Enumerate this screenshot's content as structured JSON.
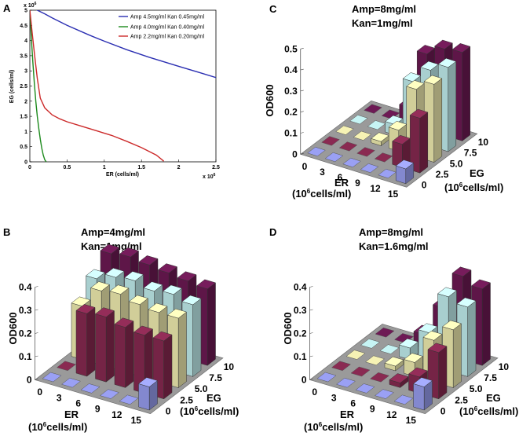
{
  "colors": {
    "blue": "#2b2fb2",
    "green": "#1d8a1d",
    "red": "#cc2a2a",
    "plum": "#6e1a55",
    "maroon": "#8a2a52",
    "cream": "#f6f2b4",
    "cyan": "#c6f4f4",
    "lavender": "#9aa0f4",
    "floor": "#9a9a9a"
  },
  "chart_data": [
    {
      "panel": "A",
      "type": "line",
      "xlabel": "ER (cells/ml)",
      "ylabel": "EG (cells/ml)",
      "x_scale_label": "x 10",
      "x_scale_exp": "6",
      "y_scale_label": "x 10",
      "y_scale_exp": "6",
      "xlim": [
        0,
        2.5
      ],
      "ylim": [
        0,
        5
      ],
      "xticks": [
        "0",
        "0.5",
        "1",
        "1.5",
        "2",
        "2.5"
      ],
      "yticks": [
        "0",
        "0.5",
        "1",
        "1.5",
        "2",
        "2.5",
        "3",
        "3.5",
        "4",
        "4.5",
        "5"
      ],
      "legend": "top-right",
      "series": [
        {
          "name": "Amp 4.5mg/ml Kan 0.45mg/ml",
          "color": "blue",
          "x": [
            0.0,
            0.02,
            0.05,
            0.1,
            0.2,
            0.3,
            0.5,
            0.8,
            1.0,
            1.3,
            1.6,
            2.0,
            2.3,
            2.5
          ],
          "y": [
            5.2,
            5.15,
            5.08,
            5.0,
            4.88,
            4.75,
            4.5,
            4.18,
            3.98,
            3.7,
            3.45,
            3.15,
            2.93,
            2.78
          ]
        },
        {
          "name": "Amp 4.0mg/ml Kan 0.40mg/ml",
          "color": "green",
          "x": [
            0.0,
            0.01,
            0.02,
            0.04,
            0.06,
            0.08,
            0.1,
            0.12,
            0.14,
            0.16,
            0.18,
            0.2,
            0.22
          ],
          "y": [
            5.0,
            4.6,
            4.1,
            3.3,
            2.6,
            2.0,
            1.5,
            1.1,
            0.75,
            0.45,
            0.22,
            0.07,
            0.0
          ]
        },
        {
          "name": "Amp 2.2mg/ml Kan 0.20mg/ml",
          "color": "red",
          "x": [
            0.0,
            0.03,
            0.06,
            0.1,
            0.14,
            0.2,
            0.3,
            0.4,
            0.5,
            0.7,
            0.9,
            1.1,
            1.3,
            1.5,
            1.7,
            1.8
          ],
          "y": [
            5.0,
            4.3,
            3.6,
            2.75,
            2.1,
            1.78,
            1.55,
            1.42,
            1.32,
            1.17,
            1.02,
            0.87,
            0.68,
            0.47,
            0.22,
            0.02
          ]
        }
      ]
    },
    {
      "panel": "B",
      "type": "bar3d",
      "title_line1": "Amp=4mg/ml",
      "title_line2": "Kan=1mg/ml",
      "zlabel": "OD600",
      "zlim": [
        0,
        0.4
      ],
      "zticks": [
        "0",
        "0.1",
        "0.2",
        "0.3",
        "0.4"
      ],
      "x_label": "ER",
      "x_unit_pre": "(10",
      "x_unit_exp": "6",
      "x_unit_post": "cells/ml)",
      "x_categories": [
        "0",
        "3",
        "6",
        "9",
        "12",
        "15"
      ],
      "y_label": "EG",
      "y_unit_pre": "(10",
      "y_unit_exp": "6",
      "y_unit_post": "cells/ml)",
      "y_categories": [
        "0",
        "2.5",
        "5.0",
        "7.5",
        "10"
      ],
      "values": [
        [
          0.0,
          0.0,
          0.23,
          0.3,
          0.36
        ],
        [
          0.0,
          0.27,
          0.32,
          0.33,
          0.37
        ],
        [
          0.0,
          0.28,
          0.33,
          0.34,
          0.36
        ],
        [
          0.0,
          0.26,
          0.31,
          0.32,
          0.35
        ],
        [
          0.0,
          0.25,
          0.3,
          0.33,
          0.34
        ],
        [
          0.1,
          0.25,
          0.3,
          0.31,
          0.33
        ]
      ]
    },
    {
      "panel": "C",
      "type": "bar3d",
      "title_line1": "Amp=8mg/ml",
      "title_line2": "Kan=1mg/ml",
      "zlabel": "OD600",
      "zlim": [
        0,
        0.5
      ],
      "zticks": [
        "0",
        "0.1",
        "0.2",
        "0.3",
        "0.4",
        "0.5"
      ],
      "x_label": "ER",
      "x_unit_pre": "(10",
      "x_unit_exp": "6",
      "x_unit_post": "cells/ml)",
      "x_categories": [
        "0",
        "3",
        "6",
        "9",
        "12",
        "15"
      ],
      "y_label": "EG",
      "y_unit_pre": "(10",
      "y_unit_exp": "6",
      "y_unit_post": "cells/ml)",
      "y_categories": [
        "0",
        "2.5",
        "5.0",
        "7.5",
        "10"
      ],
      "values": [
        [
          0.0,
          0.0,
          0.0,
          0.0,
          0.0
        ],
        [
          0.0,
          0.0,
          0.0,
          0.0,
          0.0
        ],
        [
          0.0,
          0.0,
          0.02,
          0.05,
          0.08
        ],
        [
          0.0,
          0.0,
          0.1,
          0.28,
          0.36
        ],
        [
          0.0,
          0.11,
          0.32,
          0.36,
          0.41
        ],
        [
          0.07,
          0.26,
          0.37,
          0.4,
          0.42
        ]
      ]
    },
    {
      "panel": "D",
      "type": "bar3d",
      "title_line1": "Amp=8mg/ml",
      "title_line2": "Kan=1.6mg/ml",
      "zlabel": "OD600",
      "zlim": [
        0,
        0.4
      ],
      "zticks": [
        "0",
        "0.1",
        "0.2",
        "0.3",
        "0.4"
      ],
      "x_label": "ER",
      "x_unit_pre": "(10",
      "x_unit_exp": "6",
      "x_unit_post": "cells/ml)",
      "x_categories": [
        "0",
        "3",
        "6",
        "9",
        "12",
        "15"
      ],
      "y_label": "EG",
      "y_unit_pre": "(10",
      "y_unit_exp": "6",
      "y_unit_post": "cells/ml)",
      "y_categories": [
        "0",
        "2.5",
        "5.0",
        "7.5",
        "10"
      ],
      "values": [
        [
          0.0,
          0.0,
          0.0,
          0.0,
          0.0
        ],
        [
          0.0,
          0.0,
          0.0,
          0.0,
          0.0
        ],
        [
          0.0,
          0.0,
          0.02,
          0.05,
          0.06
        ],
        [
          0.0,
          0.02,
          0.06,
          0.14,
          0.2
        ],
        [
          0.0,
          0.07,
          0.18,
          0.32,
          0.36
        ],
        [
          0.1,
          0.2,
          0.25,
          0.3,
          0.33
        ]
      ]
    }
  ]
}
